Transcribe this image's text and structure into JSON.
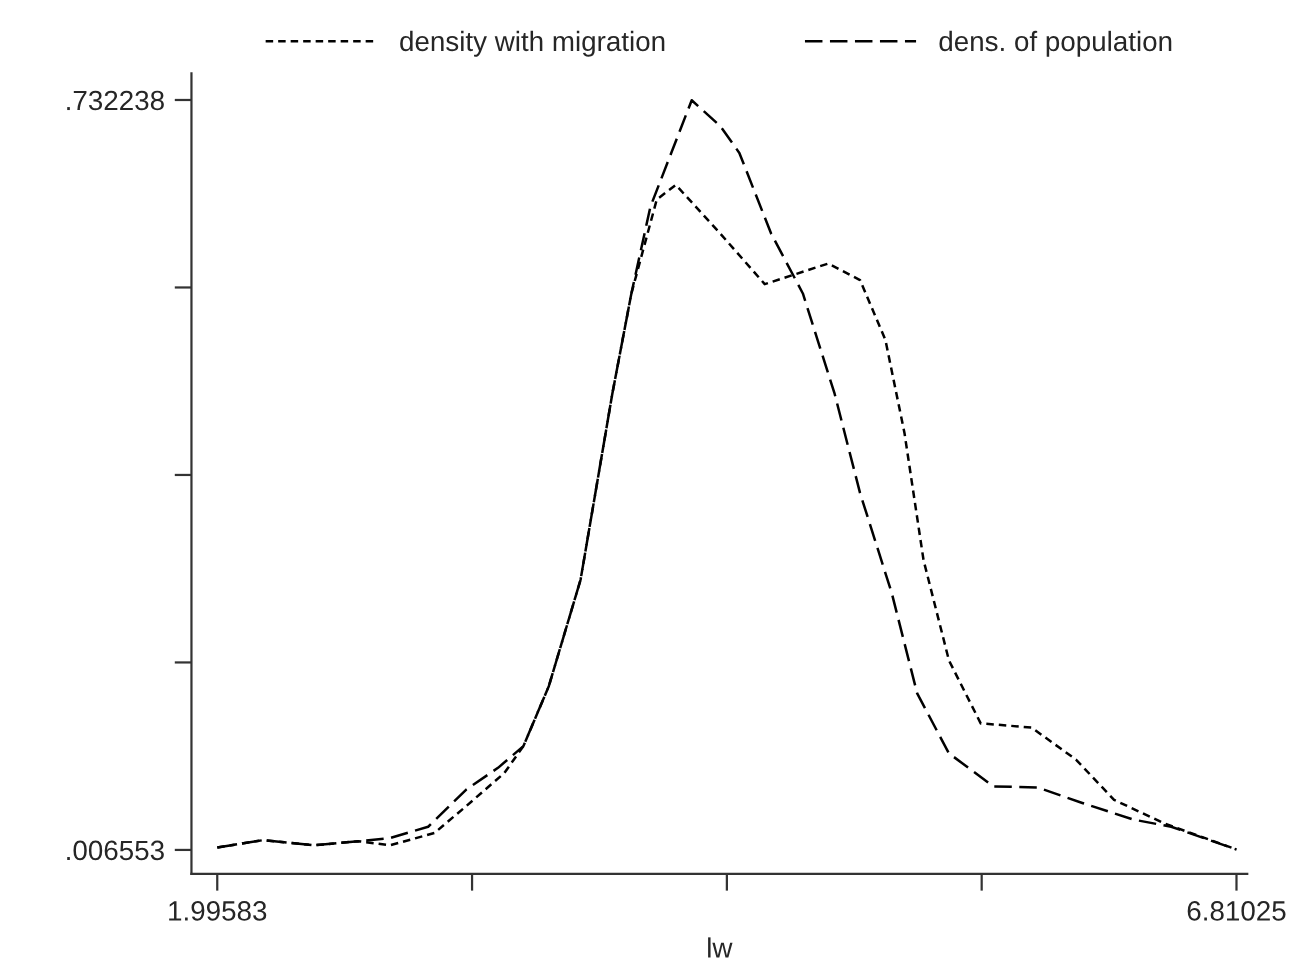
{
  "chart_data": {
    "type": "line",
    "xlabel": "lw",
    "xlim": [
      1.874,
      6.861
    ],
    "ylim": [
      -0.0167,
      0.758
    ],
    "xticks": [
      1.99583,
      {
        "value": 3.19944,
        "label": null
      },
      {
        "value": 4.40304,
        "label": null
      },
      {
        "value": 5.60665,
        "label": null
      },
      6.81025
    ],
    "yticks": [
      {
        "value": 0.006553,
        "label": ".006553"
      },
      {
        "value": 0.187974,
        "label": null
      },
      {
        "value": 0.369396,
        "label": null
      },
      {
        "value": 0.550817,
        "label": null
      },
      {
        "value": 0.732238,
        "label": ".732238"
      }
    ],
    "grid": false,
    "legend": "top",
    "line_style": "dashed",
    "marker": "none",
    "series": [
      {
        "name": "density with migration",
        "color": "#000000",
        "x": [
          1.996,
          2.212,
          2.452,
          2.662,
          2.812,
          3.022,
          3.172,
          3.352,
          3.442,
          3.562,
          3.712,
          3.862,
          3.952,
          4.072,
          4.162,
          4.372,
          4.582,
          4.732,
          4.882,
          5.032,
          5.152,
          5.242,
          5.332,
          5.452,
          5.602,
          5.842,
          6.052,
          6.232,
          6.472,
          6.81
        ],
        "values": [
          0.009,
          0.016,
          0.011,
          0.015,
          0.011,
          0.023,
          0.049,
          0.081,
          0.107,
          0.165,
          0.268,
          0.448,
          0.545,
          0.636,
          0.65,
          0.603,
          0.554,
          0.564,
          0.574,
          0.558,
          0.5,
          0.41,
          0.287,
          0.19,
          0.129,
          0.125,
          0.094,
          0.055,
          0.032,
          0.007
        ]
      },
      {
        "name": "dens. of population",
        "color": "#000000",
        "x": [
          1.996,
          2.212,
          2.452,
          2.662,
          2.812,
          2.992,
          3.172,
          3.322,
          3.442,
          3.562,
          3.712,
          3.862,
          3.952,
          4.042,
          4.237,
          4.372,
          4.462,
          4.612,
          4.762,
          4.912,
          5.032,
          5.182,
          5.302,
          5.452,
          5.662,
          5.872,
          6.082,
          6.322,
          6.502,
          6.81
        ],
        "values": [
          0.009,
          0.016,
          0.011,
          0.015,
          0.018,
          0.029,
          0.065,
          0.086,
          0.107,
          0.165,
          0.268,
          0.448,
          0.545,
          0.629,
          0.732,
          0.707,
          0.681,
          0.603,
          0.545,
          0.448,
          0.352,
          0.255,
          0.158,
          0.1,
          0.068,
          0.067,
          0.052,
          0.036,
          0.029,
          0.007
        ]
      }
    ]
  }
}
